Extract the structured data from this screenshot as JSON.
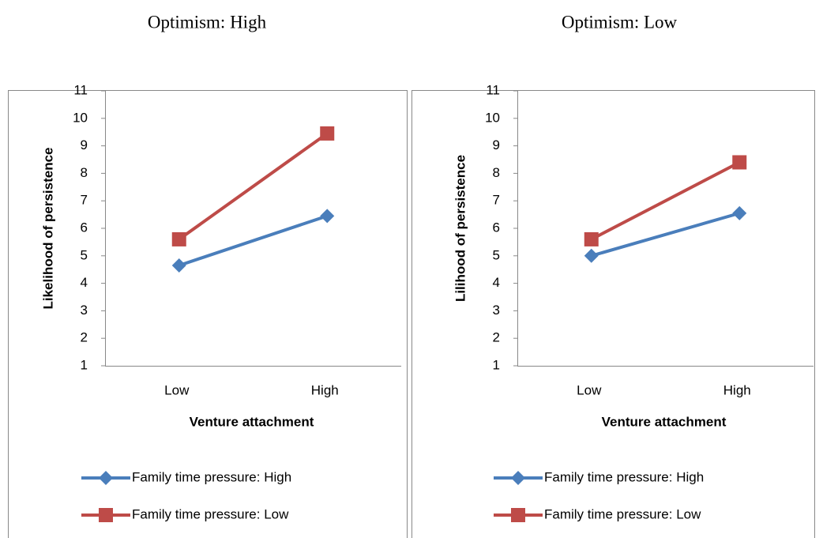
{
  "chart_data": [
    {
      "type": "line",
      "title": "Optimism: High",
      "x_label": "Venture attachment",
      "y_label": "Likelihood of persistence",
      "categories": [
        "Low",
        "High"
      ],
      "ylim": [
        1,
        11
      ],
      "yticks": [
        1,
        2,
        3,
        4,
        5,
        6,
        7,
        8,
        9,
        10,
        11
      ],
      "series": [
        {
          "name": "Family time pressure: High",
          "color": "#4a7ebb",
          "marker": "diamond",
          "values": [
            4.65,
            6.45
          ]
        },
        {
          "name": "Family time pressure: Low",
          "color": "#be4b48",
          "marker": "square",
          "values": [
            5.6,
            9.45
          ]
        }
      ]
    },
    {
      "type": "line",
      "title": "Optimism: Low",
      "x_label": "Venture attachment",
      "y_label": "Lilihood of persistence",
      "categories": [
        "Low",
        "High"
      ],
      "ylim": [
        1,
        11
      ],
      "yticks": [
        1,
        2,
        3,
        4,
        5,
        6,
        7,
        8,
        9,
        10,
        11
      ],
      "series": [
        {
          "name": "Family time pressure: High",
          "color": "#4a7ebb",
          "marker": "diamond",
          "values": [
            5.0,
            6.55
          ]
        },
        {
          "name": "Family time pressure: Low",
          "color": "#be4b48",
          "marker": "square",
          "values": [
            5.6,
            8.4
          ]
        }
      ]
    }
  ]
}
